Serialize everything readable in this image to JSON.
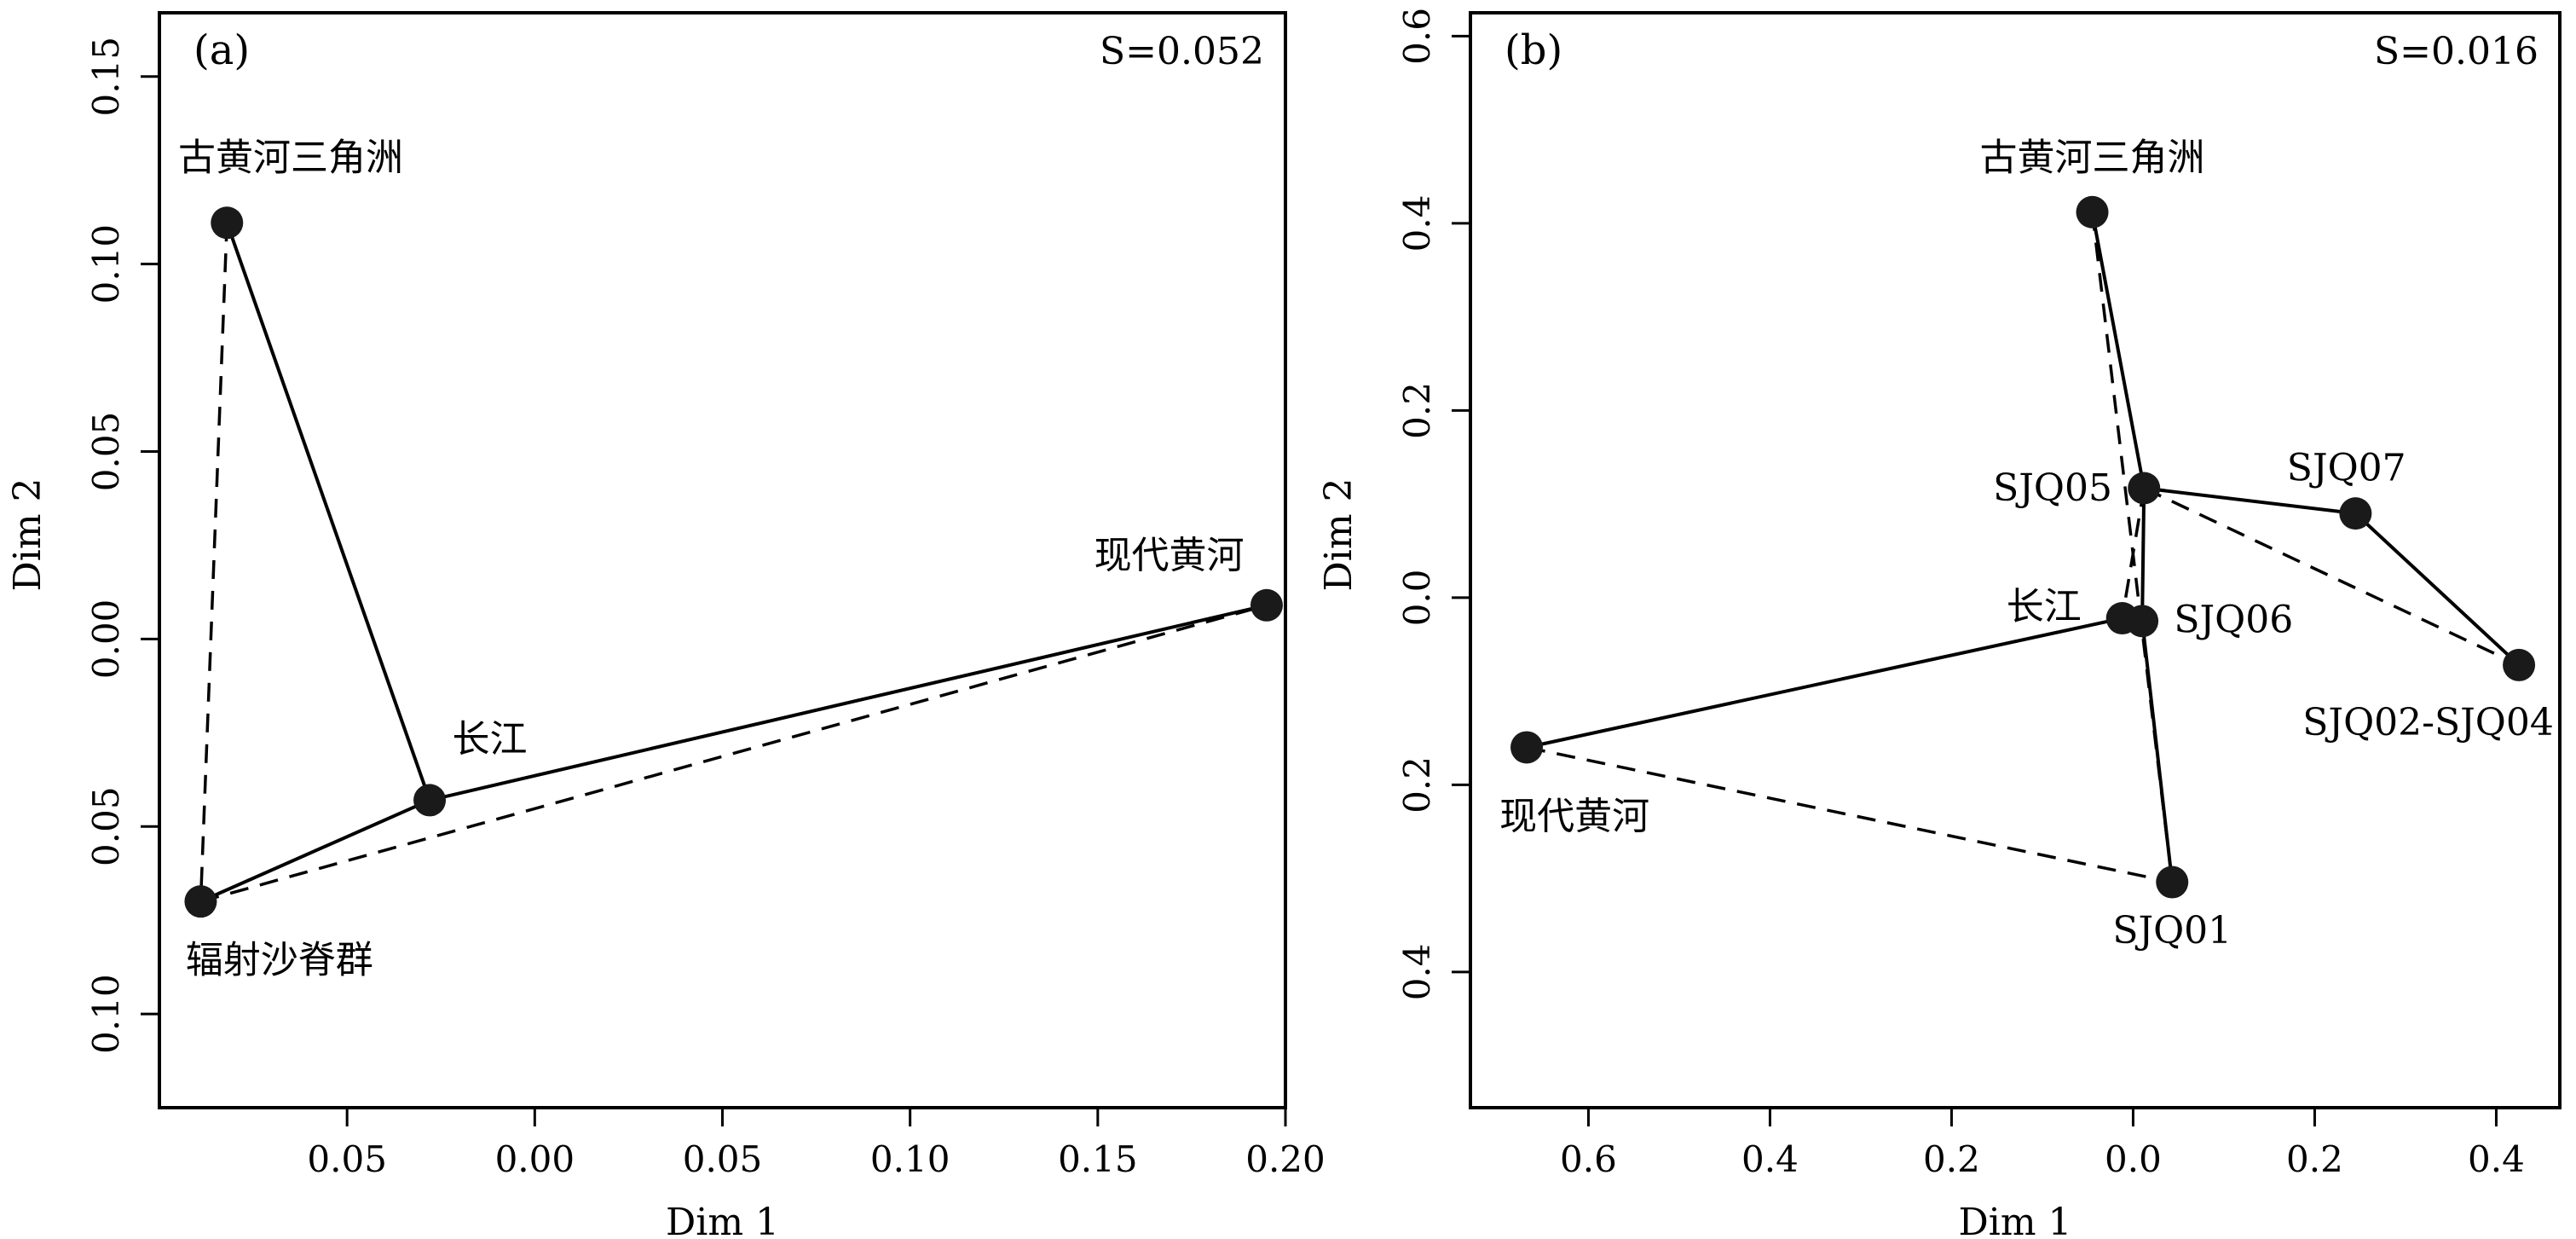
{
  "chart_data": [
    {
      "type": "scatter",
      "panel": "(a)",
      "stress": "S=0.052",
      "xlabel": "Dim 1",
      "ylabel": "Dim 2",
      "xlim": [
        -0.1,
        0.2
      ],
      "ylim": [
        -0.125,
        0.167
      ],
      "x_ticks": [
        {
          "v": -0.05,
          "label": "0.05"
        },
        {
          "v": 0.0,
          "label": "0.00"
        },
        {
          "v": 0.05,
          "label": "0.05"
        },
        {
          "v": 0.1,
          "label": "0.10"
        },
        {
          "v": 0.15,
          "label": "0.15"
        },
        {
          "v": 0.2,
          "label": "0.20"
        }
      ],
      "y_ticks": [
        {
          "v": 0.15,
          "label": "0.15"
        },
        {
          "v": 0.1,
          "label": "0.10"
        },
        {
          "v": 0.05,
          "label": "0.05"
        },
        {
          "v": 0.0,
          "label": "0.00"
        },
        {
          "v": -0.05,
          "label": "0.05"
        },
        {
          "v": -0.1,
          "label": "0.10"
        }
      ],
      "points": [
        {
          "id": "gu",
          "label": "古黄河三角洲",
          "x": -0.082,
          "y": 0.111,
          "anchor": "start",
          "dx": -0.013,
          "dy": 0.014
        },
        {
          "id": "cj",
          "label": "长江",
          "x": -0.028,
          "y": -0.043,
          "anchor": "start",
          "dx": 0.006,
          "dy": 0.013
        },
        {
          "id": "fs",
          "label": "辐射沙脊群",
          "x": -0.089,
          "y": -0.07,
          "anchor": "start",
          "dx": -0.004,
          "dy": -0.019
        },
        {
          "id": "xd",
          "label": "现代黄河",
          "x": 0.195,
          "y": 0.009,
          "anchor": "end",
          "dx": -0.006,
          "dy": 0.01
        }
      ],
      "solid_lines": [
        [
          "gu",
          "cj"
        ],
        [
          "cj",
          "fs"
        ],
        [
          "cj",
          "xd"
        ]
      ],
      "dashed_lines": [
        [
          "gu",
          "fs"
        ],
        [
          "fs",
          "xd"
        ]
      ]
    },
    {
      "type": "scatter",
      "panel": "(b)",
      "stress": "S=0.016",
      "xlabel": "Dim 1",
      "ylabel": "Dim 2",
      "xlim": [
        -0.73,
        0.47
      ],
      "ylim": [
        -0.545,
        0.625
      ],
      "x_ticks": [
        {
          "v": -0.6,
          "label": "0.6"
        },
        {
          "v": -0.4,
          "label": "0.4"
        },
        {
          "v": -0.2,
          "label": "0.2"
        },
        {
          "v": 0.0,
          "label": "0.0"
        },
        {
          "v": 0.2,
          "label": "0.2"
        },
        {
          "v": 0.4,
          "label": "0.4"
        }
      ],
      "y_ticks": [
        {
          "v": 0.6,
          "label": "0.6"
        },
        {
          "v": 0.4,
          "label": "0.4"
        },
        {
          "v": 0.2,
          "label": "0.2"
        },
        {
          "v": 0.0,
          "label": "0.0"
        },
        {
          "v": -0.2,
          "label": "0.2"
        },
        {
          "v": -0.4,
          "label": "0.4"
        }
      ],
      "points": [
        {
          "id": "gu",
          "label": "古黄河三角洲",
          "x": -0.045,
          "y": 0.412,
          "anchor": "middle",
          "dx": 0.0,
          "dy": 0.045
        },
        {
          "id": "s05",
          "label": "SJQ05",
          "x": 0.012,
          "y": 0.117,
          "anchor": "end",
          "dx": -0.035,
          "dy": -0.013
        },
        {
          "id": "s07",
          "label": "SJQ07",
          "x": 0.245,
          "y": 0.09,
          "anchor": "middle",
          "dx": -0.01,
          "dy": 0.035
        },
        {
          "id": "cj",
          "label": "长江",
          "x": -0.012,
          "y": -0.022,
          "anchor": "end",
          "dx": -0.045,
          "dy": -0.001
        },
        {
          "id": "s06",
          "label": "SJQ06",
          "x": 0.01,
          "y": -0.025,
          "anchor": "start",
          "dx": 0.035,
          "dy": -0.012
        },
        {
          "id": "s0204",
          "label": "SJQ02-SJQ04",
          "x": 0.425,
          "y": -0.072,
          "anchor": "middle",
          "dx": -0.1,
          "dy": -0.075
        },
        {
          "id": "xd",
          "label": "现代黄河",
          "x": -0.668,
          "y": -0.16,
          "anchor": "start",
          "dx": -0.03,
          "dy": -0.087
        },
        {
          "id": "s01",
          "label": "SJQ01",
          "x": 0.043,
          "y": -0.304,
          "anchor": "middle",
          "dx": 0.0,
          "dy": -0.065
        }
      ],
      "solid_lines": [
        [
          "gu",
          "s05"
        ],
        [
          "s05",
          "s07"
        ],
        [
          "s07",
          "s0204"
        ],
        [
          "s05",
          "s06"
        ],
        [
          "s06",
          "s01"
        ],
        [
          "cj",
          "s06"
        ],
        [
          "cj",
          "xd"
        ]
      ],
      "dashed_lines": [
        [
          "gu",
          "s01"
        ],
        [
          "s05",
          "cj"
        ],
        [
          "s05",
          "s0204"
        ],
        [
          "xd",
          "s01"
        ]
      ]
    }
  ]
}
